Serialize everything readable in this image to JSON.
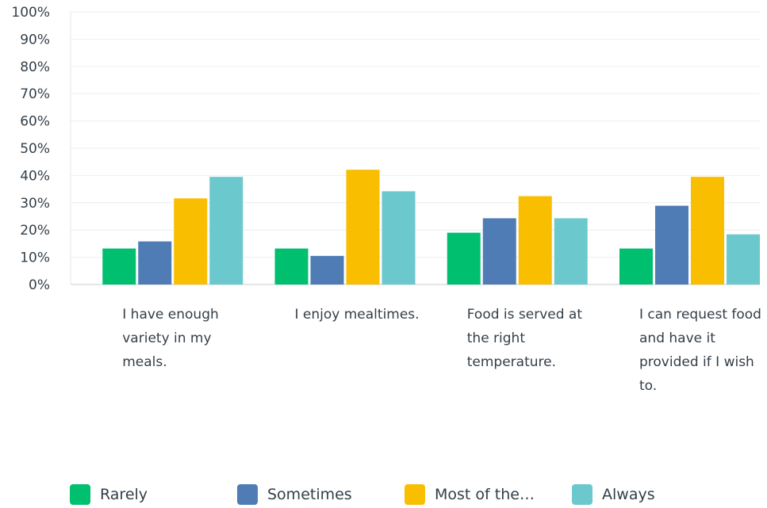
{
  "chart_data": {
    "type": "bar",
    "title": "",
    "xlabel": "",
    "ylabel": "",
    "ylim": [
      0,
      100
    ],
    "yticks": [
      "0%",
      "10%",
      "20%",
      "30%",
      "40%",
      "50%",
      "60%",
      "70%",
      "80%",
      "90%",
      "100%"
    ],
    "grid": true,
    "legend_position": "bottom",
    "categories": [
      "I have enough variety in my meals.",
      "I enjoy mealtimes.",
      "Food is served at the right temperature.",
      "I can request food and have it provided if I wish to."
    ],
    "series": [
      {
        "name": "Rarely",
        "color": "#00bf6f",
        "values": [
          13.2,
          13.2,
          19.0,
          13.2
        ]
      },
      {
        "name": "Sometimes",
        "color": "#507cb6",
        "values": [
          15.8,
          10.5,
          24.3,
          28.9
        ]
      },
      {
        "name": "Most of the…",
        "color": "#f9be00",
        "values": [
          31.6,
          42.1,
          32.4,
          39.5
        ]
      },
      {
        "name": "Always",
        "color": "#6bc8cd",
        "values": [
          39.5,
          34.2,
          24.3,
          18.4
        ]
      }
    ]
  }
}
